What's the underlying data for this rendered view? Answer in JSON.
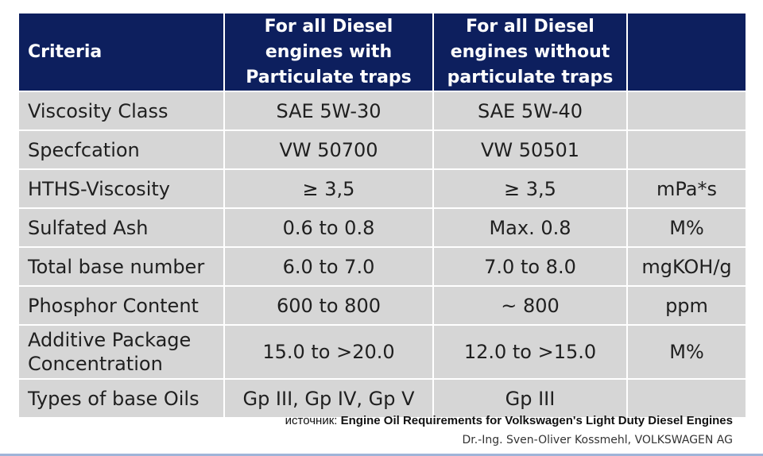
{
  "table": {
    "headers": [
      "Criteria",
      "For all Diesel engines with Particulate traps",
      "For all Diesel engines without particulate traps",
      ""
    ],
    "rows": [
      [
        "Viscosity Class",
        "SAE 5W-30",
        "SAE 5W-40",
        ""
      ],
      [
        "Specfcation",
        "VW 50700",
        "VW 50501",
        ""
      ],
      [
        "HTHS-Viscosity",
        "≥ 3,5",
        "≥ 3,5",
        "mPa*s"
      ],
      [
        "Sulfated Ash",
        "0.6 to 0.8",
        "Max. 0.8",
        "M%"
      ],
      [
        "Total base number",
        "6.0 to 7.0",
        "7.0 to 8.0",
        "mgKOH/g"
      ],
      [
        "Phosphor Content",
        "600 to 800",
        "~ 800",
        "ppm"
      ],
      [
        "Additive Package Concentration",
        "15.0 to >20.0",
        "12.0 to >15.0",
        "M%"
      ],
      [
        "Types of base Oils",
        "Gp III, Gp IV, Gp V",
        "Gp III",
        ""
      ]
    ]
  },
  "footer": {
    "source_label": "источник:",
    "source_title": "Engine Oil Requirements for Volkswagen's Light Duty Diesel Engines",
    "author": "Dr.-Ing. Sven-Oliver Kossmehl, VOLKSWAGEN AG"
  },
  "colors": {
    "header_bg": "#0d1f5e",
    "row_bg": "#d6d6d6"
  }
}
